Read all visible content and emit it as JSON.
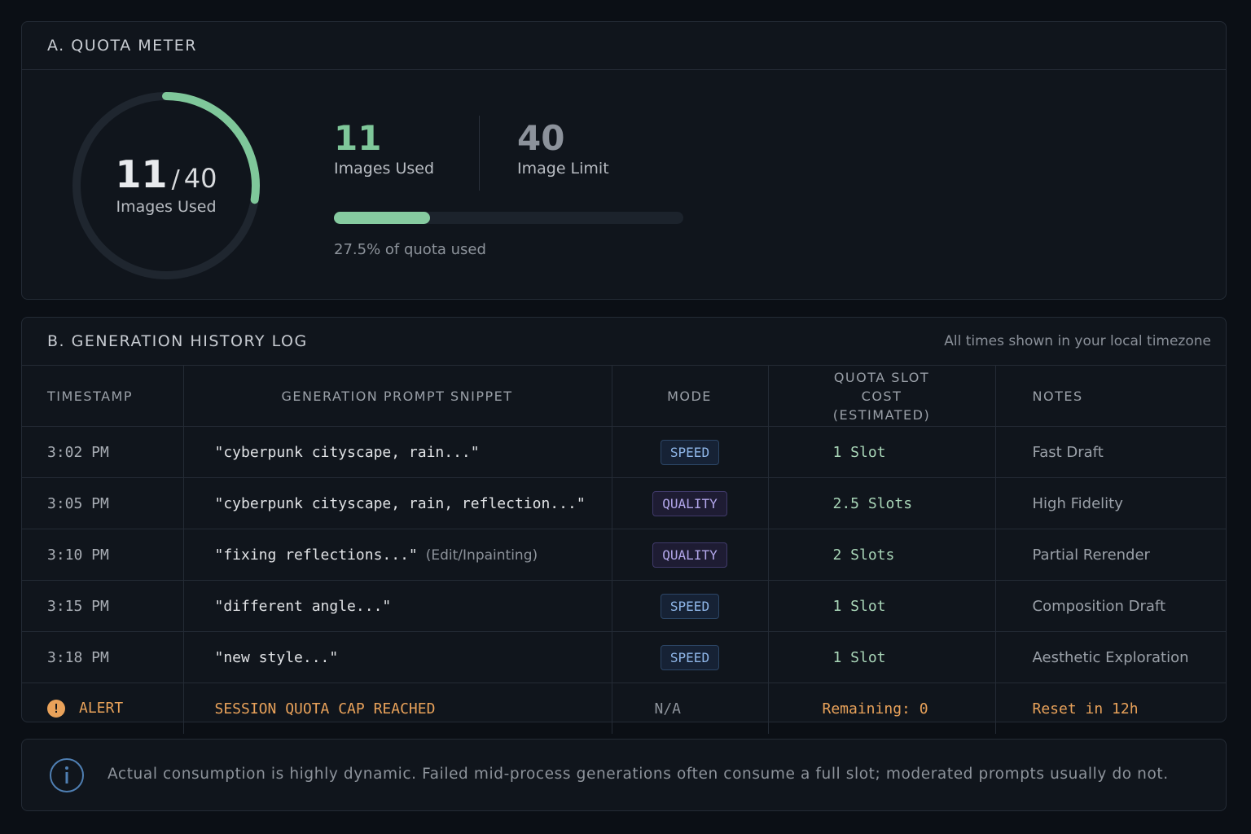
{
  "quota": {
    "title": "A. QUOTA METER",
    "used": 11,
    "limit": 40,
    "separator": "/",
    "used_label": "Images Used",
    "limit_label": "Image Limit",
    "percent_text": "27.5% of quota used"
  },
  "history": {
    "title": "B. GENERATION HISTORY LOG",
    "subtitle": "All times shown in your local timezone",
    "columns": [
      "TIMESTAMP",
      "GENERATION PROMPT SNIPPET",
      "MODE",
      "QUOTA SLOT COST (ESTIMATED)",
      "NOTES"
    ],
    "rows": [
      {
        "timestamp": "3:02 PM",
        "prompt": "\"cyberpunk cityscape, rain...\"",
        "mode": "SPEED",
        "cost": "1 Slot",
        "notes": "Fast Draft"
      },
      {
        "timestamp": "3:05 PM",
        "prompt": "\"cyberpunk cityscape, rain, reflection...\"",
        "mode": "QUALITY",
        "cost": "2.5 Slots",
        "notes": "High Fidelity"
      },
      {
        "timestamp": "3:10 PM",
        "prompt": "\"fixing reflections...\"",
        "prompt_note": "(Edit/Inpainting)",
        "mode": "QUALITY",
        "cost": "2 Slots",
        "notes": "Partial Rerender"
      },
      {
        "timestamp": "3:15 PM",
        "prompt": "\"different angle...\"",
        "mode": "SPEED",
        "cost": "1 Slot",
        "notes": "Composition Draft"
      },
      {
        "timestamp": "3:18 PM",
        "prompt": "\"new style...\"",
        "mode": "SPEED",
        "cost": "1 Slot",
        "notes": "Aesthetic Exploration"
      }
    ],
    "alert": {
      "timestamp": "ALERT",
      "prompt": "SESSION QUOTA CAP REACHED",
      "mode": "N/A",
      "cost": "Remaining: 0",
      "notes": "Reset in 12h"
    }
  },
  "info": {
    "text": "Actual consumption is highly dynamic. Failed mid-process generations often consume a full slot; moderated prompts usually do not."
  }
}
